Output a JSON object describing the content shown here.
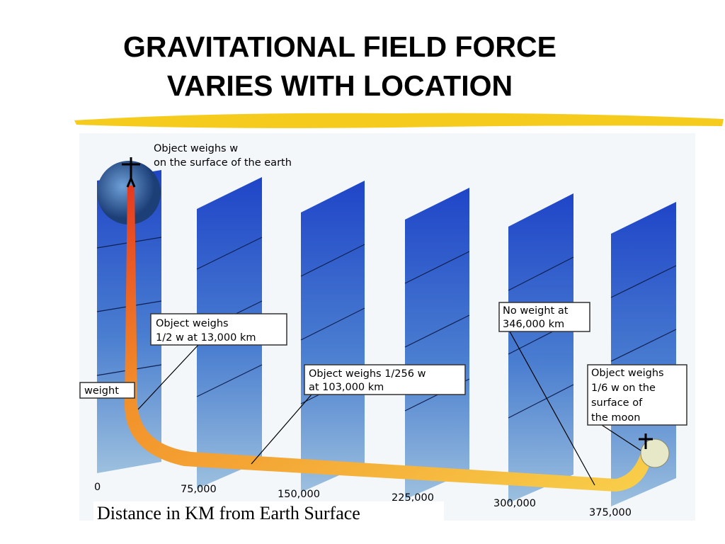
{
  "title": {
    "lines": [
      "GRAVITATIONAL FIELD FORCE",
      "VARIES WITH LOCATION"
    ]
  },
  "diagram": {
    "earth_note": {
      "lines": [
        "Object weighs w",
        "on the surface of the earth"
      ]
    },
    "callouts": [
      {
        "lines": [
          "Object weighs",
          "1/2 w at 13,000 km"
        ]
      },
      {
        "lines": [
          "weight"
        ]
      },
      {
        "lines": [
          "Object weighs  1/256 w",
          "at 103,000 km"
        ]
      },
      {
        "lines": [
          "No weight at",
          "346,000 km"
        ]
      },
      {
        "lines": [
          "Object weighs",
          "1/6 w on the",
          "surface of",
          "the moon"
        ]
      }
    ],
    "distance_labels": [
      "0",
      "75,000",
      "150,000",
      "225,000",
      "300,000",
      "375,000"
    ],
    "caption": "Distance in KM from Earth Surface"
  }
}
